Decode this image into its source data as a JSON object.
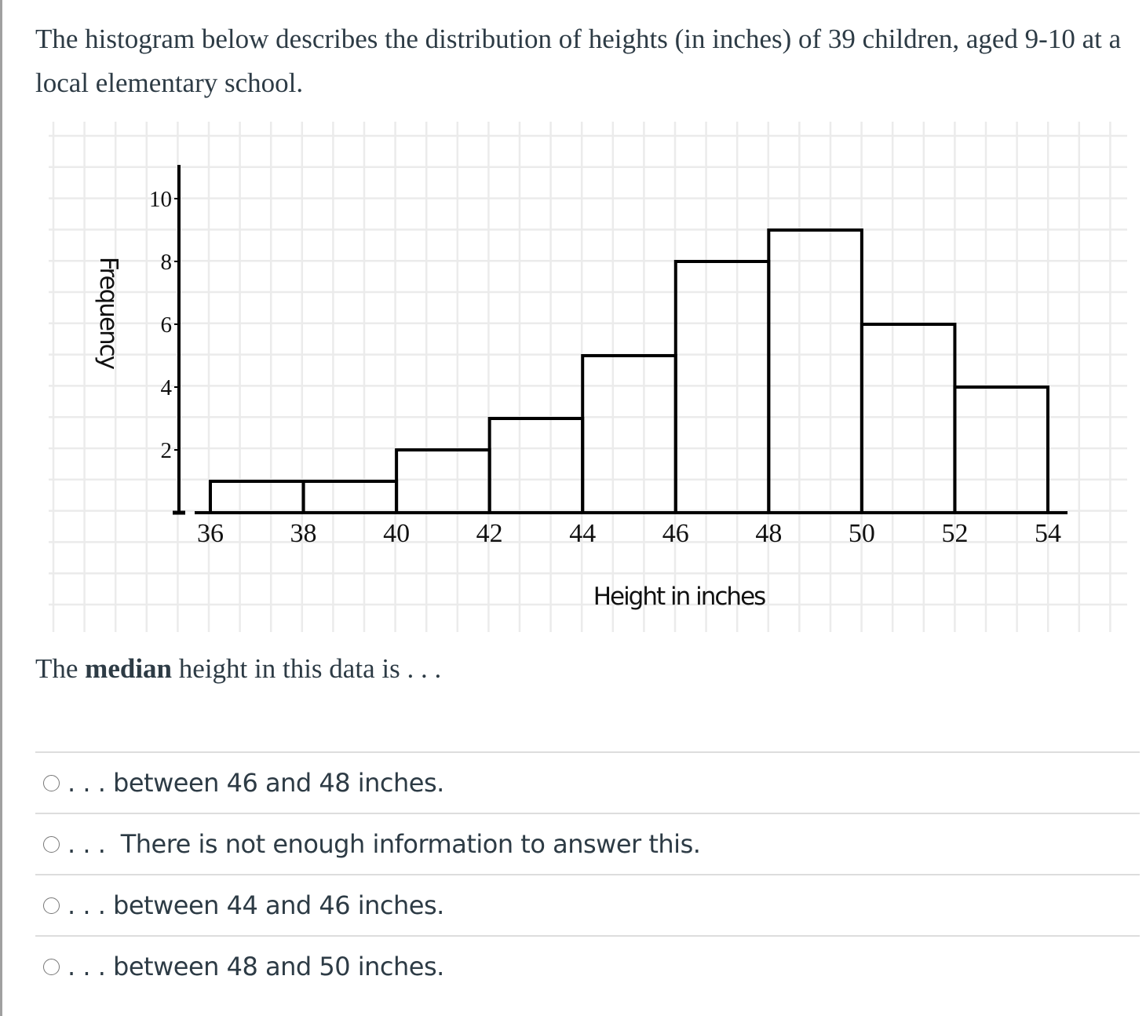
{
  "intro_text": "The histogram below describes the distribution of heights (in inches) of 39 children, aged 9-10 at a local elementary school.",
  "question": {
    "prefix": "The ",
    "bold": "median",
    "suffix": " height in this data is . . ."
  },
  "options": [
    {
      "label": ". . . between 46 and 48 inches."
    },
    {
      "label": ". . .  There is not enough information to answer this."
    },
    {
      "label": ". . . between 44 and 46 inches."
    },
    {
      "label": ". . . between 48 and 50 inches."
    }
  ],
  "chart_data": {
    "type": "bar",
    "title": "",
    "xlabel": "Height in inches",
    "ylabel": "Frequency",
    "bin_edges": [
      36,
      38,
      40,
      42,
      44,
      46,
      48,
      50,
      52,
      54
    ],
    "categories": [
      "36-38",
      "38-40",
      "40-42",
      "42-44",
      "44-46",
      "46-48",
      "48-50",
      "50-52",
      "52-54"
    ],
    "values": [
      1,
      1,
      2,
      3,
      5,
      8,
      9,
      6,
      4
    ],
    "x_ticks": [
      "36",
      "38",
      "40",
      "42",
      "44",
      "46",
      "48",
      "50",
      "52",
      "54"
    ],
    "y_ticks": [
      "2",
      "4",
      "6",
      "8",
      "10"
    ],
    "ylim": [
      0,
      11
    ],
    "xlim": [
      36,
      54
    ],
    "grid": true,
    "legend": null,
    "total": 39
  }
}
